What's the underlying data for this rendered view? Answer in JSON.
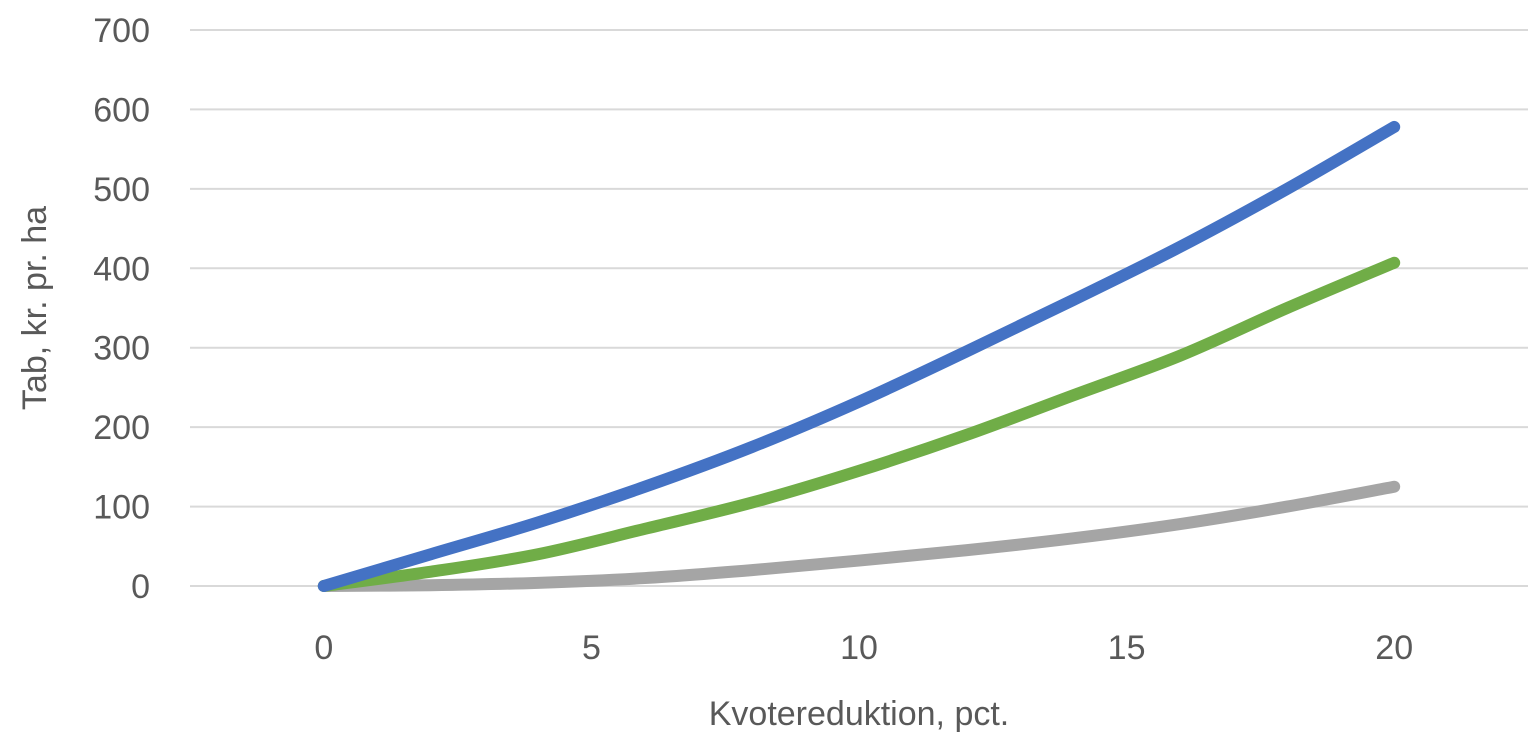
{
  "chart_data": {
    "type": "line",
    "title": "",
    "xlabel": "Kvotereduktion,  pct.",
    "ylabel": "Tab, kr. pr. ha",
    "xlim": [
      -2.5,
      22.5
    ],
    "ylim": [
      0,
      700
    ],
    "x_ticks": [
      0,
      5,
      10,
      15,
      20
    ],
    "y_ticks": [
      0,
      100,
      200,
      300,
      400,
      500,
      600,
      700
    ],
    "grid": true,
    "legend": "none",
    "x": [
      0,
      2,
      4,
      6,
      8,
      10,
      12,
      14,
      16,
      18,
      20
    ],
    "series": [
      {
        "color": "#4472c4",
        "values": [
          0,
          40,
          80,
          125,
          175,
          232,
          295,
          360,
          427,
          500,
          578
        ]
      },
      {
        "color": "#70ad47",
        "values": [
          0,
          18,
          40,
          72,
          105,
          145,
          190,
          240,
          290,
          350,
          407
        ]
      },
      {
        "color": "#a5a5a5",
        "values": [
          0,
          1,
          4,
          10,
          20,
          32,
          45,
          60,
          78,
          100,
          125
        ]
      }
    ]
  }
}
